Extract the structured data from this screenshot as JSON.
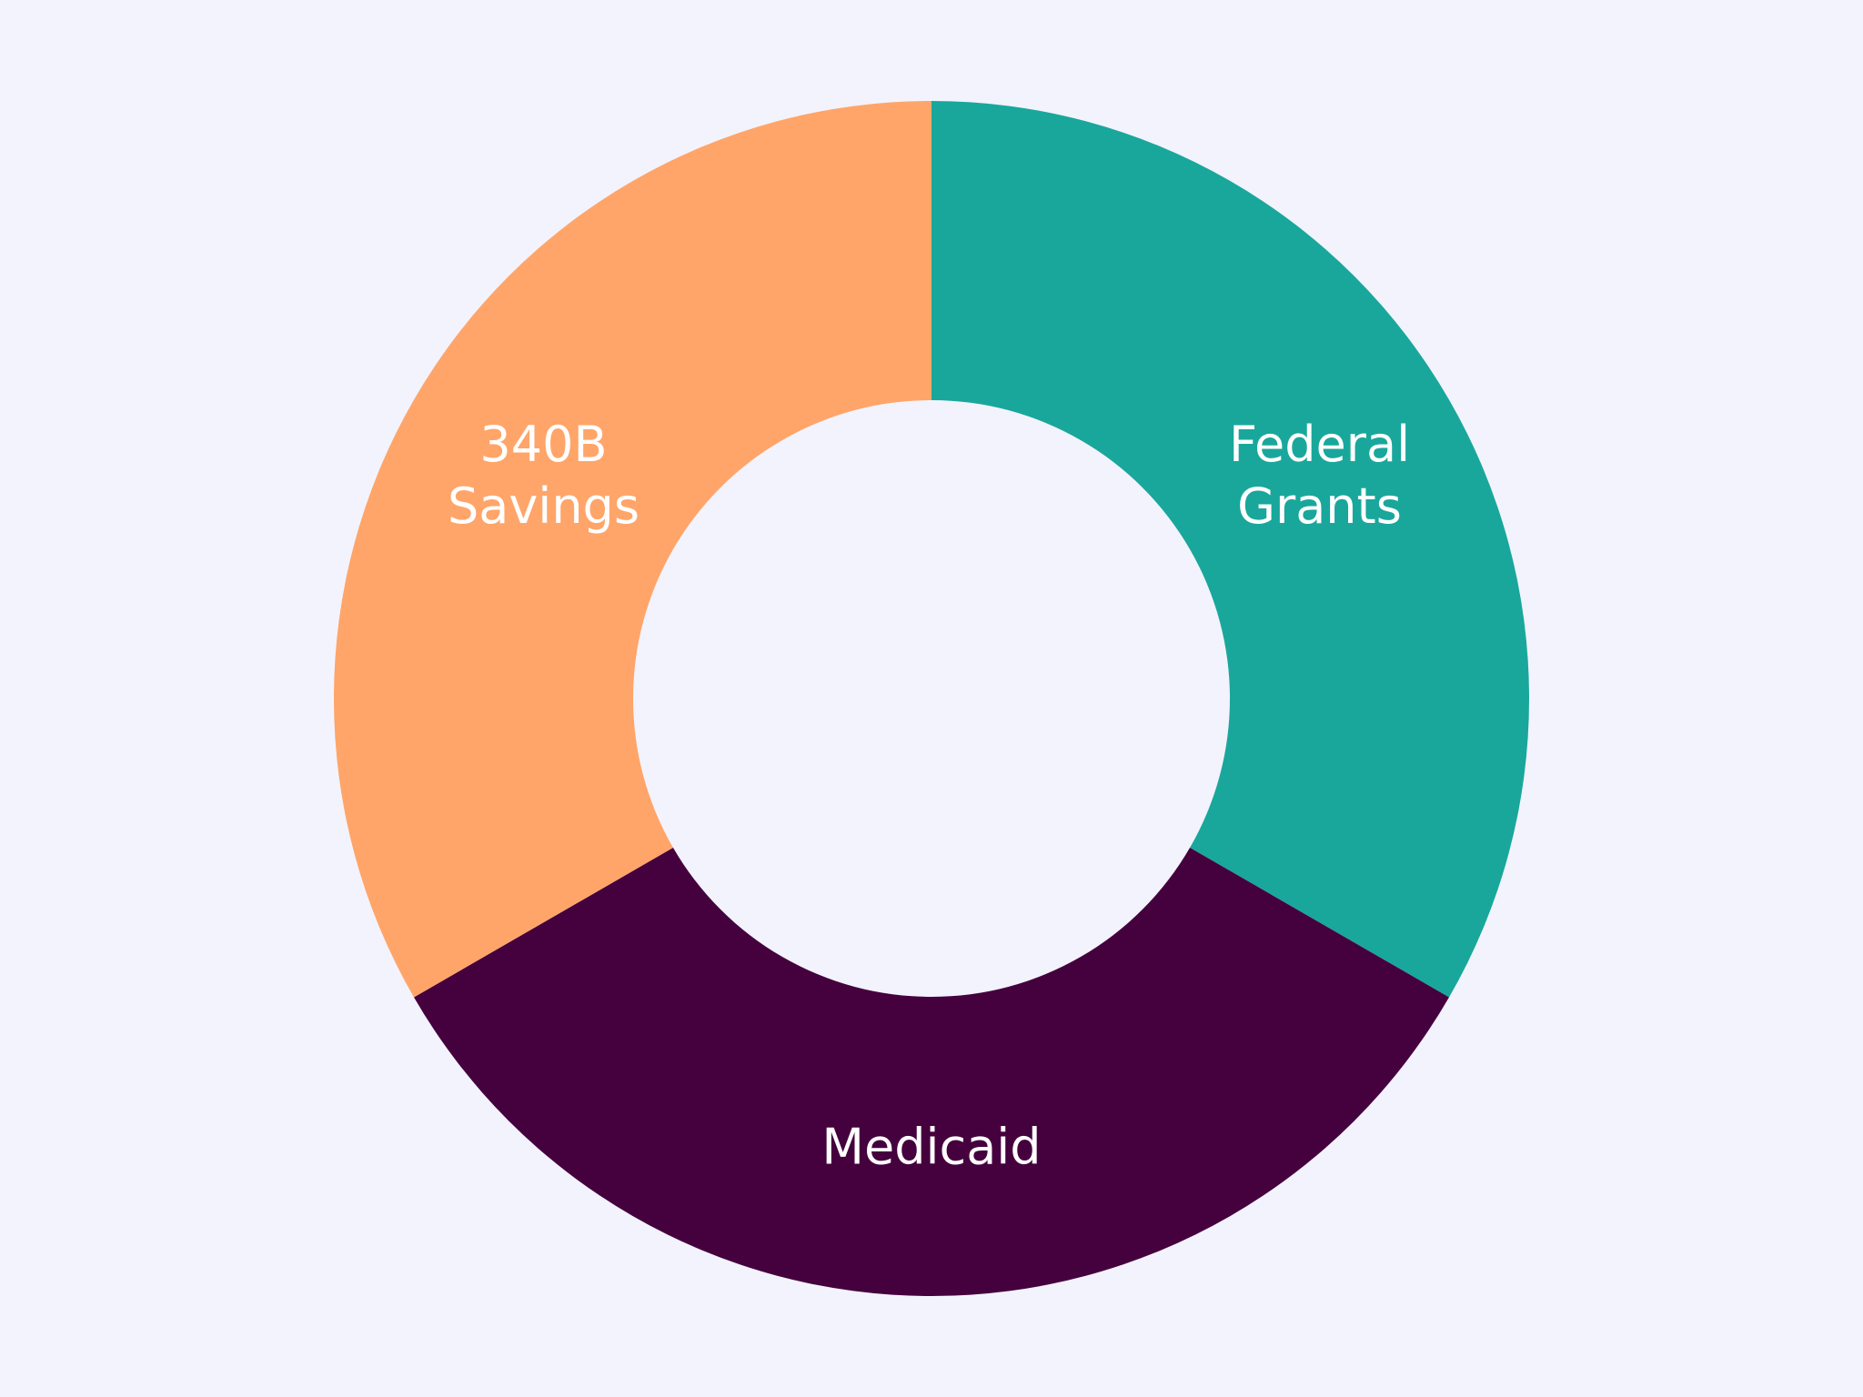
{
  "chart_data": {
    "type": "pie",
    "style": "donut",
    "title": "",
    "categories": [
      "Federal Grants",
      "Medicaid",
      "340B Savings"
    ],
    "values": [
      1,
      1,
      1
    ],
    "colors": [
      "#19a79c",
      "#45003e",
      "#ffa569"
    ],
    "label_lines": [
      [
        "Federal",
        "Grants"
      ],
      [
        "Medicaid"
      ],
      [
        "340B",
        "Savings"
      ]
    ],
    "start_position": "top",
    "direction": "clockwise"
  },
  "background_color": "#f3f3fd"
}
